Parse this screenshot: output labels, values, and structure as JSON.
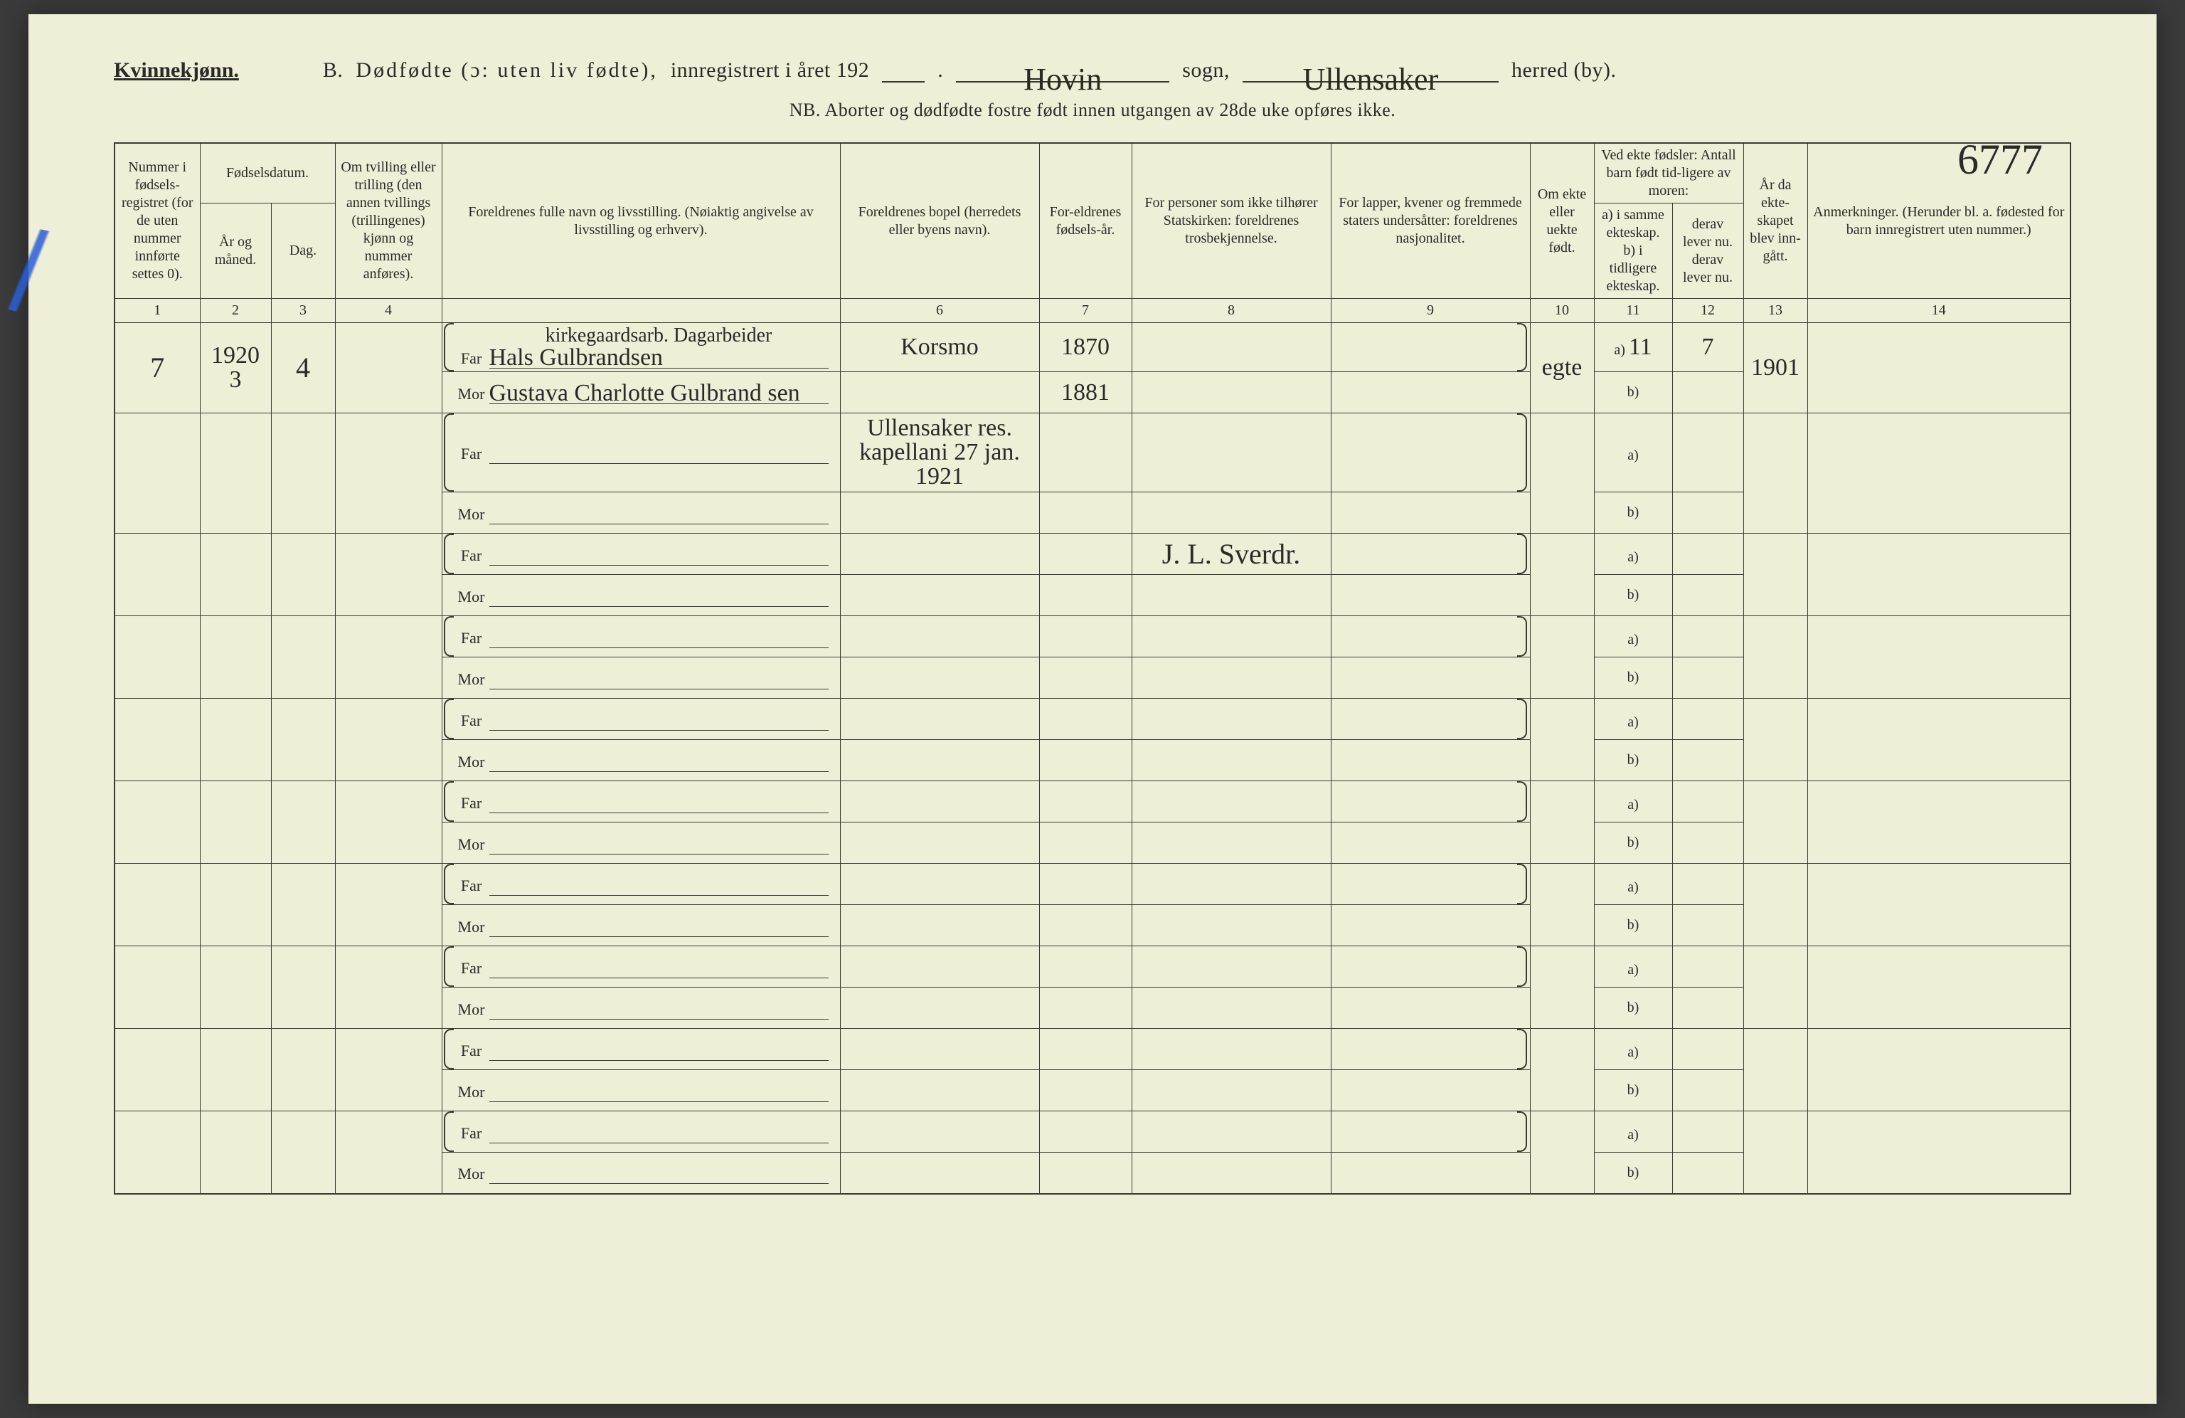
{
  "header": {
    "gender_label": "Kvinnekjønn.",
    "section_letter": "B.",
    "title_main": "Dødfødte (ɔ: uten liv fødte),",
    "title_tail": "innregistrert i året 192",
    "year_suffix_blank": ".",
    "sogn_value": "Hovin",
    "sogn_label": "sogn,",
    "herred_value": "Ullensaker",
    "herred_label": "herred (by).",
    "nb_line": "NB. Aborter og dødfødte fostre født innen utgangen av 28de uke opføres ikke.",
    "page_number_hw": "6777"
  },
  "columns": {
    "c1": "Nummer i fødsels-registret (for de uten nummer innførte settes 0).",
    "c2_group": "Fødselsdatum.",
    "c2a": "År og måned.",
    "c2b": "Dag.",
    "c4": "Om tvilling eller trilling (den annen tvillings (trillingenes) kjønn og nummer anføres).",
    "c5": "Foreldrenes fulle navn og livsstilling. (Nøiaktig angivelse av livsstilling og erhverv).",
    "c6": "Foreldrenes bopel (herredets eller byens navn).",
    "c7": "For-eldrenes fødsels-år.",
    "c8": "For personer som ikke tilhører Statskirken: foreldrenes trosbekjennelse.",
    "c9": "For lapper, kvener og fremmede staters undersåtter: foreldrenes nasjonalitet.",
    "c10": "Om ekte eller uekte født.",
    "c11_group": "Ved ekte fødsler: Antall barn født tid-ligere av moren:",
    "c11a": "a) i samme ekteskap.",
    "c11b": "derav lever nu.",
    "c12a": "b) i tidligere ekteskap.",
    "c12b": "derav lever nu.",
    "c13": "År da ekte-skapet blev inn-gått.",
    "c14": "Anmerkninger. (Herunder bl. a. fødested for barn innregistrert uten nummer.)"
  },
  "colnums": [
    "1",
    "2",
    "3",
    "4",
    "",
    "6",
    "7",
    "8",
    "9",
    "10",
    "11",
    "12",
    "13",
    "14"
  ],
  "labels": {
    "far": "Far",
    "mor": "Mor",
    "a": "a)",
    "b": "b)"
  },
  "rows": [
    {
      "num": "7",
      "year_month": "1920 3",
      "day": "4",
      "far_occ_above": "kirkegaardsarb. Dagarbeider",
      "far_name": "Hals Gulbrandsen",
      "mor_name": "Gustava Charlotte Gulbrand sen",
      "residence": "Korsmo",
      "far_birth": "1870",
      "mor_birth": "1881",
      "ekte": "egte",
      "a_val": "11",
      "a_lever": "7",
      "year_married": "1901"
    },
    {
      "note_line": "Ullensaker res. kapellani 27 jan. 1921"
    },
    {
      "signature": "J. L. Sverdr."
    },
    {},
    {},
    {},
    {},
    {},
    {},
    {}
  ],
  "style": {
    "paper_bg": "#efeed7",
    "ink": "#2a2a2a",
    "rule": "#3a3a33",
    "blue_pencil": "#2a5fd6",
    "header_fontsize_pt": 30,
    "nb_fontsize_pt": 26,
    "cell_fontsize_pt": 20,
    "handwriting_fontsize_pt": 44
  }
}
